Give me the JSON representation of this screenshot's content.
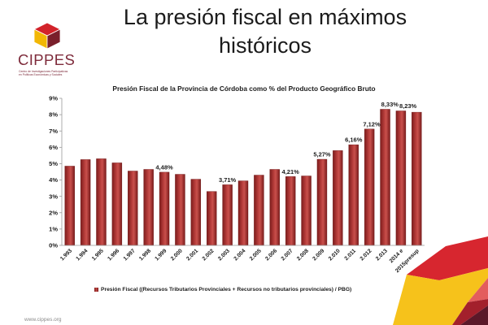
{
  "slide": {
    "title_lines": [
      "La presión fiscal en máximos",
      "históricos"
    ],
    "footer": "www.cippes.org"
  },
  "logo": {
    "name": "CIPPES",
    "subtitle_lines": [
      "Centro de Investigaciones Participativas",
      "en Políticas Económicas y Sociales"
    ],
    "cube_colors": {
      "top": "#d2232a",
      "left": "#f2b705",
      "right": "#7a1f2b"
    }
  },
  "decoration": {
    "red": "#d7262f",
    "yellow": "#f6c21b",
    "pink": "#e35d5d",
    "dark_red": "#a3202c",
    "maroon": "#5b1829"
  },
  "chart_data": {
    "type": "bar",
    "title": "Presión Fiscal de la Provincia de Córdoba como % del Producto Geográfico Bruto",
    "categories": [
      "1.993",
      "1.994",
      "1.995",
      "1.996",
      "1.997",
      "1.998",
      "1.999",
      "2.000",
      "2.001",
      "2.002",
      "2.003",
      "2.004",
      "2.005",
      "2.006",
      "2.007",
      "2.008",
      "2.009",
      "2.010",
      "2.011",
      "2.012",
      "2.013",
      "2014 e",
      "2015presup"
    ],
    "series": [
      {
        "name": "Presión Fiscal ((Recursos Tributarios Provinciales + Recursos no tributarios provinciales) / PBG)",
        "values": [
          4.85,
          5.25,
          5.3,
          5.05,
          4.55,
          4.65,
          4.48,
          4.35,
          4.05,
          3.3,
          3.71,
          3.95,
          4.3,
          4.65,
          4.21,
          4.25,
          5.27,
          5.8,
          6.16,
          7.12,
          8.33,
          8.23,
          8.15
        ],
        "data_labels": [
          null,
          null,
          null,
          null,
          null,
          null,
          "4,48%",
          null,
          null,
          null,
          "3,71%",
          null,
          null,
          null,
          "4,21%",
          null,
          "5,27%",
          null,
          "6,16%",
          "7,12%",
          "8,33%",
          "8,23%",
          null
        ],
        "color": "#b53c3a"
      }
    ],
    "ylim": [
      0,
      9
    ],
    "yticks": [
      0,
      1,
      2,
      3,
      4,
      5,
      6,
      7,
      8,
      9
    ],
    "ytick_labels": [
      "0%",
      "1%",
      "2%",
      "3%",
      "4%",
      "5%",
      "6%",
      "7%",
      "8%",
      "9%"
    ],
    "grid": false,
    "legend": "bottom"
  }
}
